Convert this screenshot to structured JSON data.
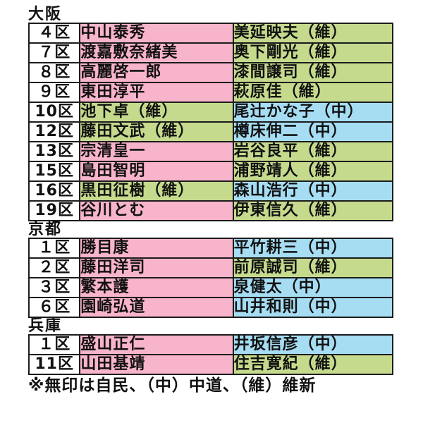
{
  "page": {
    "background": "#ffffff"
  },
  "colors": {
    "border": "#1c1c1c",
    "text": "#111111",
    "cell_fills": {
      "white": "#ffffff",
      "pink": "#f8b4cb",
      "green": "#c5da8d",
      "blue": "#a6ddf3"
    }
  },
  "sections": [
    {
      "title": "大阪",
      "rows": [
        {
          "district": "４区",
          "cells": [
            {
              "text": "中山泰秀",
              "fill": "pink"
            },
            {
              "text": "美延映夫（維）",
              "fill": "green"
            }
          ]
        },
        {
          "district": "７区",
          "cells": [
            {
              "text": "渡嘉敷奈緒美",
              "fill": "pink"
            },
            {
              "text": "奥下剛光（維）",
              "fill": "green"
            }
          ]
        },
        {
          "district": "８区",
          "cells": [
            {
              "text": "高麗啓一郎",
              "fill": "pink"
            },
            {
              "text": "漆間譲司（維）",
              "fill": "green"
            }
          ]
        },
        {
          "district": "９区",
          "cells": [
            {
              "text": "東田淳平",
              "fill": "pink"
            },
            {
              "text": "萩原佳（維）",
              "fill": "green"
            }
          ]
        },
        {
          "district": "10区",
          "cells": [
            {
              "text": "池下卓（維）",
              "fill": "green"
            },
            {
              "text": "尾辻かな子（中）",
              "fill": "blue"
            }
          ]
        },
        {
          "district": "12区",
          "cells": [
            {
              "text": "藤田文武（維）",
              "fill": "green"
            },
            {
              "text": "樽床伸二（中）",
              "fill": "blue"
            }
          ]
        },
        {
          "district": "13区",
          "cells": [
            {
              "text": "宗清皇一",
              "fill": "pink"
            },
            {
              "text": "岩谷良平（維）",
              "fill": "green"
            }
          ]
        },
        {
          "district": "15区",
          "cells": [
            {
              "text": "島田智明",
              "fill": "pink"
            },
            {
              "text": "浦野靖人（維）",
              "fill": "green"
            }
          ]
        },
        {
          "district": "16区",
          "cells": [
            {
              "text": "黒田征樹（維）",
              "fill": "green"
            },
            {
              "text": "森山浩行（中）",
              "fill": "blue"
            }
          ]
        },
        {
          "district": "19区",
          "cells": [
            {
              "text": "谷川とむ",
              "fill": "pink"
            },
            {
              "text": "伊東信久（維）",
              "fill": "green"
            }
          ]
        }
      ]
    },
    {
      "title": "京都",
      "rows": [
        {
          "district": "１区",
          "cells": [
            {
              "text": "勝目康",
              "fill": "pink"
            },
            {
              "text": "平竹耕三（中）",
              "fill": "blue"
            }
          ]
        },
        {
          "district": "２区",
          "cells": [
            {
              "text": "藤田洋司",
              "fill": "pink"
            },
            {
              "text": "前原誠司（維）",
              "fill": "green"
            }
          ]
        },
        {
          "district": "３区",
          "cells": [
            {
              "text": "繁本護",
              "fill": "pink"
            },
            {
              "text": "泉健太（中）",
              "fill": "blue"
            }
          ]
        },
        {
          "district": "６区",
          "cells": [
            {
              "text": "園崎弘道",
              "fill": "pink"
            },
            {
              "text": "山井和則（中）",
              "fill": "blue"
            }
          ]
        }
      ]
    },
    {
      "title": "兵庫",
      "rows": [
        {
          "district": "１区",
          "cells": [
            {
              "text": "盛山正仁",
              "fill": "pink"
            },
            {
              "text": "井坂信彦（中）",
              "fill": "blue"
            }
          ]
        },
        {
          "district": "11区",
          "cells": [
            {
              "text": "山田基靖",
              "fill": "pink"
            },
            {
              "text": "住吉寛紀（維）",
              "fill": "green"
            }
          ]
        }
      ]
    }
  ],
  "footer": {
    "note": "※無印は自民、（中）中道、（維）維新"
  }
}
